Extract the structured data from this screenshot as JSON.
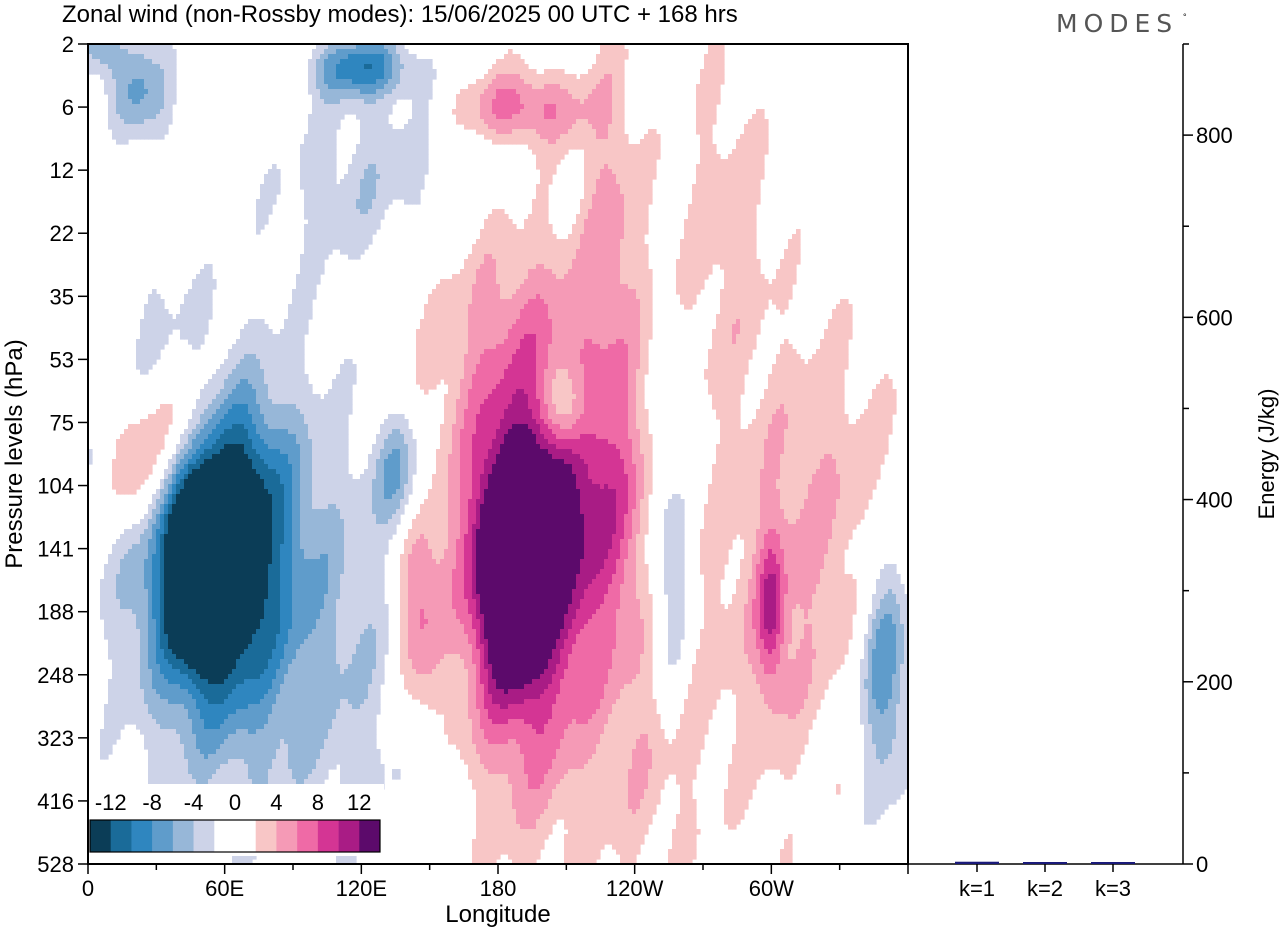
{
  "chart_data": [
    {
      "type": "heatmap",
      "title": "Zonal wind (non-Rossby modes):  15/06/2025  00 UTC  + 168 hrs",
      "xlabel": "Longitude",
      "ylabel": "Pressure levels (hPa)",
      "x_ticks": [
        "0",
        "60E",
        "120E",
        "180",
        "120W",
        "60W"
      ],
      "x_tick_values": [
        0,
        60,
        120,
        180,
        240,
        300
      ],
      "xlim": [
        0,
        360
      ],
      "y_ticks": [
        "2",
        "6",
        "12",
        "22",
        "35",
        "53",
        "75",
        "104",
        "141",
        "188",
        "248",
        "323",
        "416",
        "528"
      ],
      "colorbar": {
        "labels": [
          "-12",
          "-8",
          "-4",
          "0",
          "4",
          "8",
          "12"
        ],
        "levels": [
          -14,
          -12,
          -10,
          -8,
          -6,
          -4,
          -2,
          0,
          2,
          4,
          6,
          8,
          10,
          12,
          14
        ],
        "colors": [
          "#0b3d57",
          "#1a6b99",
          "#2f86bf",
          "#5f9ccb",
          "#97b7d8",
          "#cdd3e8",
          "#ffffff",
          "#ffffff",
          "#f8c6c6",
          "#f59ab6",
          "#ef6aa6",
          "#d43594",
          "#a91c85",
          "#5c0a6b"
        ]
      },
      "blobs": [
        {
          "lon": 50,
          "p": 150,
          "value": -14,
          "rx": 14,
          "ry": 1.4
        },
        {
          "lon": 55,
          "p": 140,
          "value": -11,
          "rx": 28,
          "ry": 2.4
        },
        {
          "lon": 60,
          "p": 130,
          "value": -7,
          "rx": 46,
          "ry": 3.6
        },
        {
          "lon": 25,
          "p": 5,
          "value": -7,
          "rx": 14,
          "ry": 0.9
        },
        {
          "lon": 5,
          "p": 2,
          "value": -6,
          "rx": 10,
          "ry": 0.6
        },
        {
          "lon": 120,
          "p": 3,
          "value": -9,
          "rx": 22,
          "ry": 0.5
        },
        {
          "lon": 110,
          "p": 13,
          "value": -4,
          "rx": 65,
          "ry": 1.5
        },
        {
          "lon": 65,
          "p": 95,
          "value": -5,
          "rx": 20,
          "ry": 1.5
        },
        {
          "lon": 138,
          "p": 100,
          "value": -7,
          "rx": 12,
          "ry": 1.0
        },
        {
          "lon": 210,
          "p": 70,
          "value": -7,
          "rx": 10,
          "ry": 0.7
        },
        {
          "lon": 255,
          "p": 160,
          "value": -7,
          "rx": 10,
          "ry": 2.2
        },
        {
          "lon": 350,
          "p": 240,
          "value": -8,
          "rx": 12,
          "ry": 2.0
        },
        {
          "lon": 120,
          "p": 260,
          "value": -3,
          "rx": 55,
          "ry": 3.0
        },
        {
          "lon": 35,
          "p": 60,
          "value": -3,
          "rx": 22,
          "ry": 2.0
        },
        {
          "lon": 40,
          "p": 80,
          "value": 10,
          "rx": 18,
          "ry": 1.4
        },
        {
          "lon": 20,
          "p": 95,
          "value": 7,
          "rx": 12,
          "ry": 1.2
        },
        {
          "lon": 60,
          "p": 75,
          "value": 5,
          "rx": 26,
          "ry": 2.0
        },
        {
          "lon": 185,
          "p": 150,
          "value": 13,
          "rx": 13,
          "ry": 1.6
        },
        {
          "lon": 190,
          "p": 160,
          "value": 9,
          "rx": 27,
          "ry": 2.8
        },
        {
          "lon": 195,
          "p": 170,
          "value": 5,
          "rx": 44,
          "ry": 4.5
        },
        {
          "lon": 145,
          "p": 180,
          "value": 7,
          "rx": 10,
          "ry": 2.0
        },
        {
          "lon": 220,
          "p": 110,
          "value": 6,
          "rx": 28,
          "ry": 2.0
        },
        {
          "lon": 300,
          "p": 190,
          "value": 7,
          "rx": 6,
          "ry": 1.2
        },
        {
          "lon": 300,
          "p": 200,
          "value": 3,
          "rx": 30,
          "ry": 3.5
        },
        {
          "lon": 230,
          "p": 20,
          "value": 4,
          "rx": 14,
          "ry": 3.0
        },
        {
          "lon": 190,
          "p": 6,
          "value": 7,
          "rx": 28,
          "ry": 0.6
        },
        {
          "lon": 60,
          "p": 12,
          "value": 3,
          "rx": 50,
          "ry": 1.8
        },
        {
          "lon": 185,
          "p": 40,
          "value": 3,
          "rx": 40,
          "ry": 2.0
        },
        {
          "lon": 280,
          "p": 20,
          "value": 3,
          "rx": 22,
          "ry": 3.0
        },
        {
          "lon": 250,
          "p": 300,
          "value": 3,
          "rx": 22,
          "ry": 3.0
        },
        {
          "lon": 330,
          "p": 110,
          "value": 3,
          "rx": 35,
          "ry": 3.0
        }
      ]
    },
    {
      "type": "bar",
      "categories": [
        "k=1",
        "k=2",
        "k=3"
      ],
      "values": [
        2.5,
        1.2,
        0.6
      ],
      "ylabel": "Energy (J/kg)",
      "ylim": [
        0,
        900
      ],
      "y_ticks": [
        0,
        200,
        400,
        600,
        800
      ],
      "bar_color": "#1a1a7a"
    }
  ],
  "brand": "MODES",
  "brand_mark": "°"
}
